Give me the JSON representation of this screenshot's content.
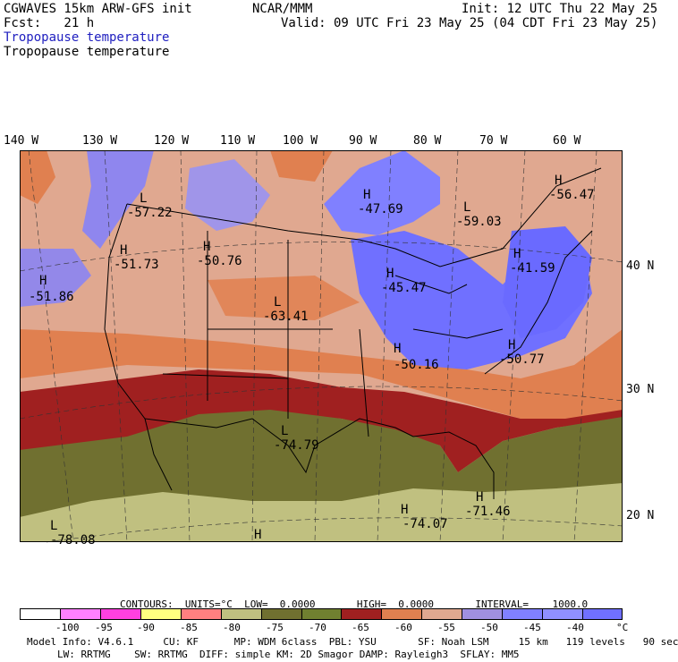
{
  "header": {
    "model": "CGWAVES 15km ARW-GFS init",
    "fcst": "Fcst:   21 h",
    "org": "NCAR/MMM",
    "init": "Init: 12 UTC Thu 22 May 25",
    "valid": "Valid: 09 UTC Fri 23 May 25 (04 CDT Fri 23 May 25)",
    "field_blue": "Tropopause temperature",
    "field_black": "Tropopause temperature"
  },
  "map": {
    "lon_labels": [
      "140 W",
      "130 W",
      "120 W",
      "110 W",
      "100 W",
      "90 W",
      "80 W",
      "70 W",
      "60 W"
    ],
    "lat_labels": [
      "40 N",
      "30 N",
      "20 N"
    ],
    "extrema": [
      {
        "type": "L",
        "value": "-57.22"
      },
      {
        "type": "H",
        "value": "-51.73"
      },
      {
        "type": "H",
        "value": "-50.76"
      },
      {
        "type": "H",
        "value": "-47.69"
      },
      {
        "type": "L",
        "value": "-59.03"
      },
      {
        "type": "H",
        "value": "-56.47"
      },
      {
        "type": "H",
        "value": "-41.59"
      },
      {
        "type": "H",
        "value": "-45.47"
      },
      {
        "type": "L",
        "value": "-63.41"
      },
      {
        "type": "H",
        "value": "-51.86"
      },
      {
        "type": "H",
        "value": "-50.16"
      },
      {
        "type": "H",
        "value": "-50.77"
      },
      {
        "type": "L",
        "value": "-74.79"
      },
      {
        "type": "H",
        "value": "-74.07"
      },
      {
        "type": "H",
        "value": "-71.46"
      },
      {
        "type": "L",
        "value": "-78.08"
      },
      {
        "type": "H",
        "value": ""
      }
    ]
  },
  "contours": {
    "line": "CONTOURS:  UNITS=°C  LOW=  0.0000       HIGH=  0.0000       INTERVAL=    1000.0"
  },
  "colorbar": {
    "colors": [
      "#ffffff",
      "#ff80ff",
      "#ff40e0",
      "#ffff80",
      "#ff8080",
      "#c0c080",
      "#707030",
      "#708030",
      "#a02020",
      "#e08050",
      "#e0a890",
      "#a090e0",
      "#8080ff",
      "#9090ff",
      "#7070ff"
    ],
    "ticks": [
      "-100",
      "-95",
      "-90",
      "-85",
      "-80",
      "-75",
      "-70",
      "-65",
      "-60",
      "-55",
      "-50",
      "-45",
      "-40",
      "°C"
    ]
  },
  "model_info": {
    "line1": "Model Info: V4.6.1     CU: KF      MP: WDM 6class  PBL: YSU       SF: Noah LSM     15 km   119 levels   90 sec",
    "line2": "LW: RRTMG    SW: RRTMG  DIFF: simple KM: 2D Smagor DAMP: Rayleigh3  SFLAY: MM5"
  }
}
